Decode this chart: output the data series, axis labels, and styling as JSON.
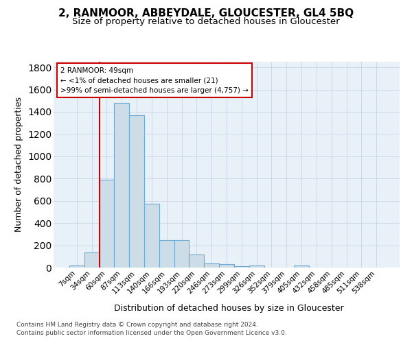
{
  "title": "2, RANMOOR, ABBEYDALE, GLOUCESTER, GL4 5BQ",
  "subtitle": "Size of property relative to detached houses in Gloucester",
  "xlabel": "Distribution of detached houses by size in Gloucester",
  "ylabel": "Number of detached properties",
  "categories": [
    "7sqm",
    "34sqm",
    "60sqm",
    "87sqm",
    "113sqm",
    "140sqm",
    "166sqm",
    "193sqm",
    "220sqm",
    "246sqm",
    "273sqm",
    "299sqm",
    "326sqm",
    "352sqm",
    "379sqm",
    "405sqm",
    "432sqm",
    "458sqm",
    "485sqm",
    "511sqm",
    "538sqm"
  ],
  "values": [
    20,
    135,
    790,
    1480,
    1370,
    575,
    248,
    248,
    115,
    37,
    28,
    15,
    18,
    0,
    0,
    20,
    0,
    0,
    0,
    0,
    0
  ],
  "bar_color": "#ccdde8",
  "bar_edge_color": "#6aaad4",
  "annotation_box_text": [
    "2 RANMOOR: 49sqm",
    "← <1% of detached houses are smaller (21)",
    ">99% of semi-detached houses are larger (4,757) →"
  ],
  "vline_color": "#cc0000",
  "vline_bar_index": 2,
  "grid_color": "#ccd8e8",
  "background_color": "#e8f0f8",
  "footnote_line1": "Contains HM Land Registry data © Crown copyright and database right 2024.",
  "footnote_line2": "Contains public sector information licensed under the Open Government Licence v3.0.",
  "ylim": [
    0,
    1850
  ],
  "yticks": [
    0,
    200,
    400,
    600,
    800,
    1000,
    1200,
    1400,
    1600,
    1800
  ],
  "title_fontsize": 11,
  "subtitle_fontsize": 9.5,
  "axis_label_fontsize": 9,
  "tick_fontsize": 7.5,
  "annot_fontsize": 7.5,
  "footnote_fontsize": 6.5
}
